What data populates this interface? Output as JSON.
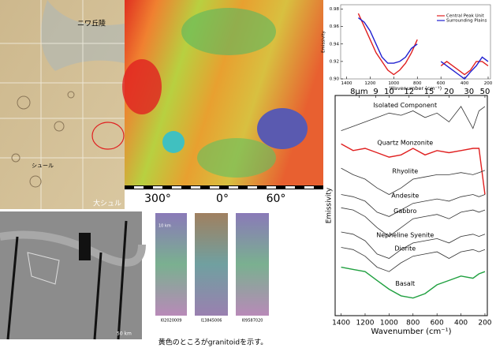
{
  "chart_data": [
    {
      "type": "line",
      "y_label": "Emissivity",
      "x_label": "Wavenumber (cm⁻¹)",
      "x": [
        1300,
        1250,
        1200,
        1150,
        1100,
        1050,
        1000,
        950,
        900,
        850,
        800,
        700,
        600,
        550,
        500,
        450,
        400,
        350,
        300,
        250,
        200
      ],
      "xlim": [
        1450,
        180
      ],
      "xticks": [
        1400,
        1200,
        1000,
        800,
        600,
        400,
        200
      ],
      "ylim": [
        0.9,
        0.985
      ],
      "yticks": [
        {
          "value": 0.9,
          "label": "0.90"
        },
        {
          "value": 0.92,
          "label": "0.92"
        },
        {
          "value": 0.94,
          "label": "0.94"
        },
        {
          "value": 0.96,
          "label": "0.96"
        },
        {
          "value": 0.98,
          "label": "0.98"
        }
      ],
      "legend": "upper right",
      "series": [
        {
          "name": "Central Peak Unit",
          "color": "#e02020",
          "values": [
            0.975,
            0.96,
            0.945,
            0.93,
            0.92,
            0.91,
            0.905,
            0.91,
            0.918,
            0.93,
            0.945,
            null,
            0.915,
            0.92,
            0.915,
            0.91,
            0.905,
            0.91,
            0.92,
            0.92,
            0.915
          ]
        },
        {
          "name": "Surrounding Plains",
          "color": "#2020d0",
          "values": [
            0.97,
            0.965,
            0.955,
            0.94,
            0.925,
            0.918,
            0.918,
            0.92,
            0.925,
            0.935,
            0.94,
            null,
            0.92,
            0.915,
            0.91,
            0.905,
            0.9,
            0.908,
            0.915,
            0.925,
            0.92
          ]
        }
      ]
    },
    {
      "type": "line",
      "y_label": "Emissivity",
      "x_label": "Wavenumber (cm⁻¹)",
      "x": [
        1400,
        1300,
        1200,
        1100,
        1000,
        900,
        800,
        700,
        600,
        500,
        400,
        300,
        250,
        200
      ],
      "xlim": [
        1450,
        180
      ],
      "xticks": [
        1400,
        1200,
        1000,
        800,
        600,
        400,
        200
      ],
      "x2ticks": [
        {
          "value": 1250,
          "label": "8μm"
        },
        {
          "value": 1111,
          "label": "9"
        },
        {
          "value": 1000,
          "label": "10"
        },
        {
          "value": 833,
          "label": "12"
        },
        {
          "value": 667,
          "label": "15"
        },
        {
          "value": 500,
          "label": "20"
        },
        {
          "value": 333,
          "label": "30"
        },
        {
          "value": 200,
          "label": "50"
        }
      ],
      "ylim": [
        0,
        100
      ],
      "series": [
        {
          "name": "Isolated Component",
          "color": "#333333",
          "values": [
            84,
            86,
            88,
            90,
            92,
            91,
            93,
            90,
            92,
            88,
            95,
            85,
            93,
            95
          ]
        },
        {
          "name": "Quartz Monzonite",
          "color": "#e02020",
          "values": [
            78,
            75,
            76,
            74,
            72,
            73,
            76,
            73,
            75,
            74,
            75,
            76,
            76,
            55
          ]
        },
        {
          "name": "Rhyolite",
          "color": "#333333",
          "values": [
            67,
            64,
            62,
            58,
            55,
            58,
            62,
            63,
            64,
            64,
            65,
            64,
            65,
            66
          ]
        },
        {
          "name": "Andesite",
          "color": "#333333",
          "values": [
            55,
            54,
            52,
            47,
            45,
            48,
            51,
            52,
            53,
            52,
            54,
            55,
            54,
            55
          ]
        },
        {
          "name": "Gabbro",
          "color": "#333333",
          "values": [
            49,
            48,
            45,
            40,
            36,
            40,
            44,
            45,
            46,
            44,
            47,
            48,
            47,
            48
          ]
        },
        {
          "name": "Nepheline Syenite",
          "color": "#333333",
          "values": [
            38,
            37,
            34,
            28,
            26,
            30,
            33,
            34,
            35,
            33,
            36,
            37,
            36,
            37
          ]
        },
        {
          "name": "Diorite",
          "color": "#333333",
          "values": [
            31,
            30,
            27,
            22,
            20,
            24,
            27,
            28,
            29,
            26,
            29,
            30,
            29,
            30
          ]
        },
        {
          "name": "Basalt",
          "color": "#20a040",
          "values": [
            22,
            21,
            20,
            16,
            12,
            9,
            8,
            10,
            14,
            16,
            18,
            17,
            19,
            20
          ]
        }
      ]
    }
  ],
  "maps": {
    "geo_map": {
      "labels": [
        "ニワ丘陵",
        "シュール",
        "大シュル"
      ]
    },
    "mola_map": {
      "longitudes": [
        "300°",
        "0°",
        "60°"
      ]
    },
    "gray_image": {
      "scale": "50 km"
    },
    "strips": {
      "labels": [
        "I02020009",
        "I13845006",
        "I09587020"
      ],
      "scale": "10 km",
      "caption": "黄色のところがgranitoidを示す。"
    }
  }
}
